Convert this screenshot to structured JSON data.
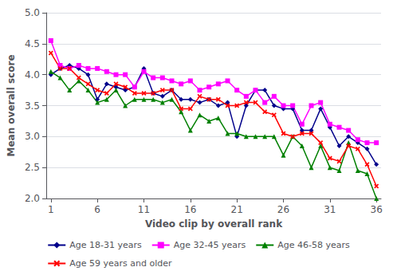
{
  "chart_data": {
    "type": "line",
    "x_label": "Video clip by overall rank",
    "y_label": "Mean overall score",
    "x": [
      1,
      2,
      3,
      4,
      5,
      6,
      7,
      8,
      9,
      10,
      11,
      12,
      13,
      14,
      15,
      16,
      17,
      18,
      19,
      20,
      21,
      22,
      23,
      24,
      25,
      26,
      27,
      28,
      29,
      30,
      31,
      32,
      33,
      34,
      35,
      36
    ],
    "series": [
      {
        "name": "Age 18-31 years",
        "color": "#00008B",
        "marker": "diamond",
        "values": [
          4.0,
          4.1,
          4.15,
          4.1,
          4.0,
          3.6,
          3.85,
          3.8,
          3.75,
          3.8,
          4.1,
          3.7,
          3.65,
          3.75,
          3.6,
          3.6,
          3.55,
          3.6,
          3.5,
          3.55,
          3.0,
          3.5,
          3.75,
          3.75,
          3.5,
          3.45,
          3.45,
          3.1,
          3.1,
          3.45,
          3.15,
          2.85,
          3.0,
          2.9,
          2.8,
          2.55
        ]
      },
      {
        "name": "Age 32-45 years",
        "color": "#FF00FF",
        "marker": "square",
        "values": [
          4.55,
          4.15,
          4.1,
          4.15,
          4.1,
          4.1,
          4.05,
          4.0,
          4.0,
          3.8,
          4.05,
          3.95,
          3.95,
          3.9,
          3.85,
          3.9,
          3.75,
          3.8,
          3.85,
          3.9,
          3.75,
          3.65,
          3.75,
          3.55,
          3.65,
          3.5,
          3.5,
          3.2,
          3.5,
          3.55,
          3.2,
          3.15,
          3.1,
          2.95,
          2.9,
          2.9
        ]
      },
      {
        "name": "Age 46-58 years",
        "color": "#008000",
        "marker": "triangle",
        "values": [
          4.05,
          3.95,
          3.75,
          3.9,
          3.75,
          3.55,
          3.6,
          3.75,
          3.5,
          3.6,
          3.6,
          3.6,
          3.55,
          3.6,
          3.4,
          3.1,
          3.35,
          3.25,
          3.3,
          3.05,
          3.05,
          3.0,
          3.0,
          3.0,
          3.0,
          2.7,
          3.0,
          2.85,
          2.5,
          2.85,
          2.5,
          2.45,
          2.9,
          2.45,
          2.4,
          2.0
        ]
      },
      {
        "name": "Age 59 years and older",
        "color": "#FF0000",
        "marker": "x",
        "values": [
          4.35,
          4.1,
          4.1,
          3.95,
          3.85,
          3.75,
          3.7,
          3.85,
          3.8,
          3.7,
          3.7,
          3.7,
          3.75,
          3.75,
          3.45,
          3.45,
          3.65,
          3.6,
          3.6,
          3.5,
          3.5,
          3.55,
          3.55,
          3.4,
          3.35,
          3.05,
          3.0,
          3.05,
          3.05,
          2.9,
          2.65,
          2.6,
          2.85,
          2.8,
          2.55,
          2.2
        ]
      }
    ],
    "xlim": [
      0.5,
      36.5
    ],
    "xticks": [
      1,
      6,
      11,
      16,
      21,
      26,
      31,
      36
    ],
    "ylim": [
      2.0,
      5.0
    ],
    "yticks": [
      {
        "value": 2.0,
        "label": "2.0"
      },
      2.5,
      {
        "value": 3.0,
        "label": "3.0"
      },
      3.5,
      {
        "value": 4.0,
        "label": "4.0"
      },
      4.5,
      {
        "value": 5.0,
        "label": "5.0"
      }
    ],
    "grid": true,
    "legend": "bottom"
  }
}
